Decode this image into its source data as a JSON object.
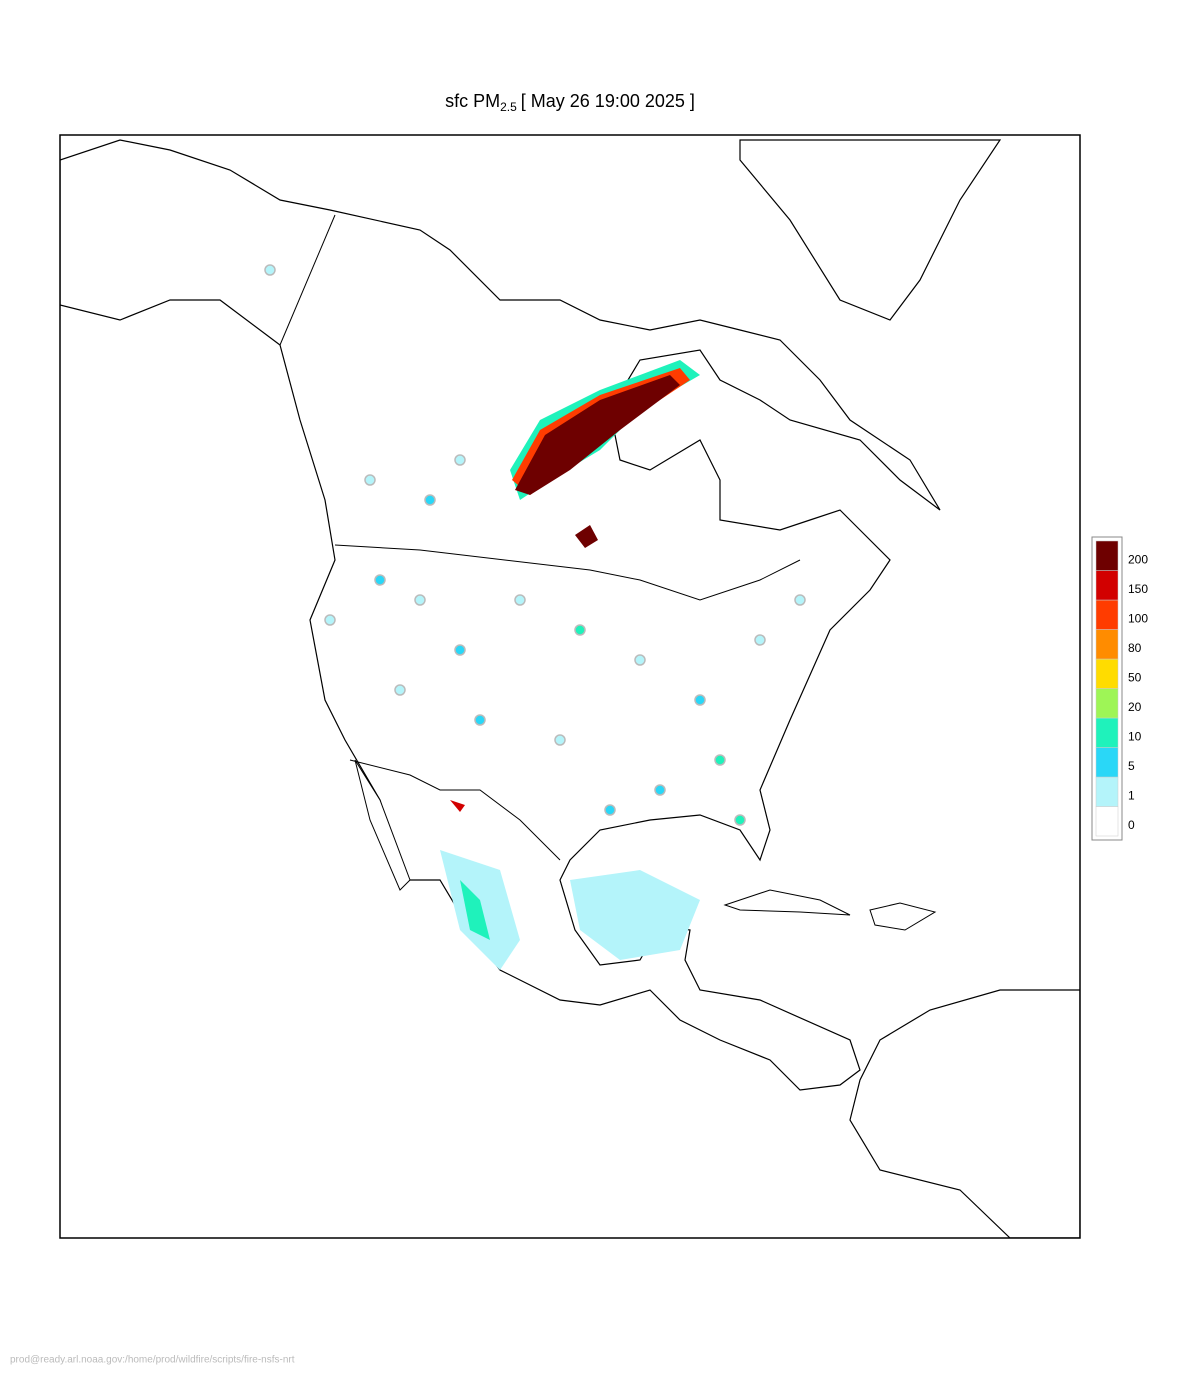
{
  "header": {
    "title_prefix": "sfc PM",
    "title_subscript": "2.5",
    "title_suffix": "[ May 26 19:00 2025 ]"
  },
  "colorbar": {
    "levels": [
      0,
      1,
      5,
      10,
      20,
      50,
      80,
      100,
      150,
      200
    ],
    "colors": [
      "#ffffff",
      "#b4f4fa",
      "#2ad7f7",
      "#1ff2bb",
      "#9ef556",
      "#ffdc00",
      "#ff8c00",
      "#ff3c00",
      "#d20000",
      "#6e0000"
    ]
  },
  "footer": {
    "path": "prod@ready.arl.noaa.gov:/home/prod/wildfire/scripts/fire-nsfs-nrt"
  }
}
